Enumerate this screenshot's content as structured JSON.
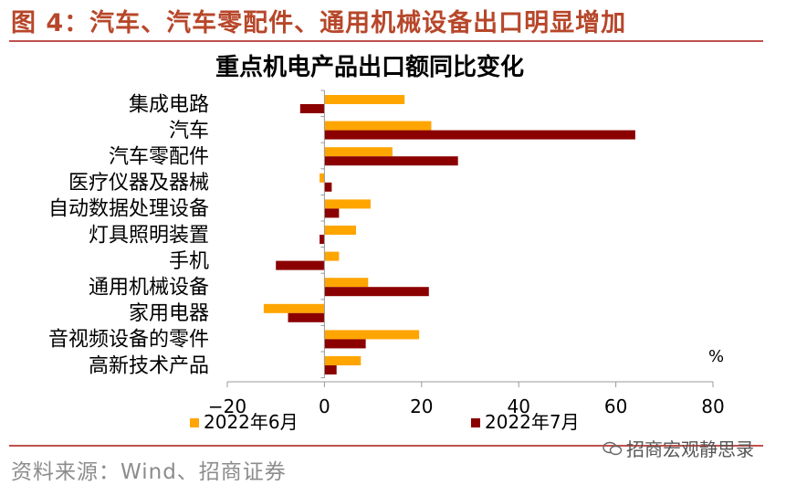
{
  "figure": {
    "title": "图 4：汽车、汽车零配件、通用机械设备出口明显增加",
    "source": "资料来源：Wind、招商证券",
    "watermark": "招商宏观静思录"
  },
  "chart_data": {
    "type": "bar",
    "orientation": "horizontal",
    "title": "重点机电产品出口额同比变化",
    "unit": "%",
    "categories": [
      "集成电路",
      "汽车",
      "汽车零配件",
      "医疗仪器及器械",
      "自动数据处理设备",
      "灯具照明装置",
      "手机",
      "通用机械设备",
      "家用电器",
      "音视频设备的零件",
      "高新技术产品"
    ],
    "series": [
      {
        "name": "2022年6月",
        "color": "#ffa500",
        "values": [
          16.5,
          22,
          14,
          -1,
          9.5,
          6.5,
          3,
          9,
          -12.5,
          19.5,
          7.5
        ]
      },
      {
        "name": "2022年7月",
        "color": "#8b0000",
        "values": [
          -5,
          64,
          27.5,
          1.5,
          3,
          -1,
          -10,
          21.5,
          -7.5,
          8.5,
          2.5
        ]
      }
    ],
    "xlim": [
      -20,
      80
    ],
    "xticks": [
      {
        "value": -20,
        "label": "−20",
        "color": "#ff0000"
      },
      {
        "value": 0,
        "label": "0",
        "color": "#000000"
      },
      {
        "value": 20,
        "label": "20",
        "color": "#000000"
      },
      {
        "value": 40,
        "label": "40",
        "color": "#000000"
      },
      {
        "value": 60,
        "label": "60",
        "color": "#000000"
      },
      {
        "value": 80,
        "label": "80",
        "color": "#000000"
      }
    ],
    "grid": false,
    "legend_position": "bottom-left"
  }
}
